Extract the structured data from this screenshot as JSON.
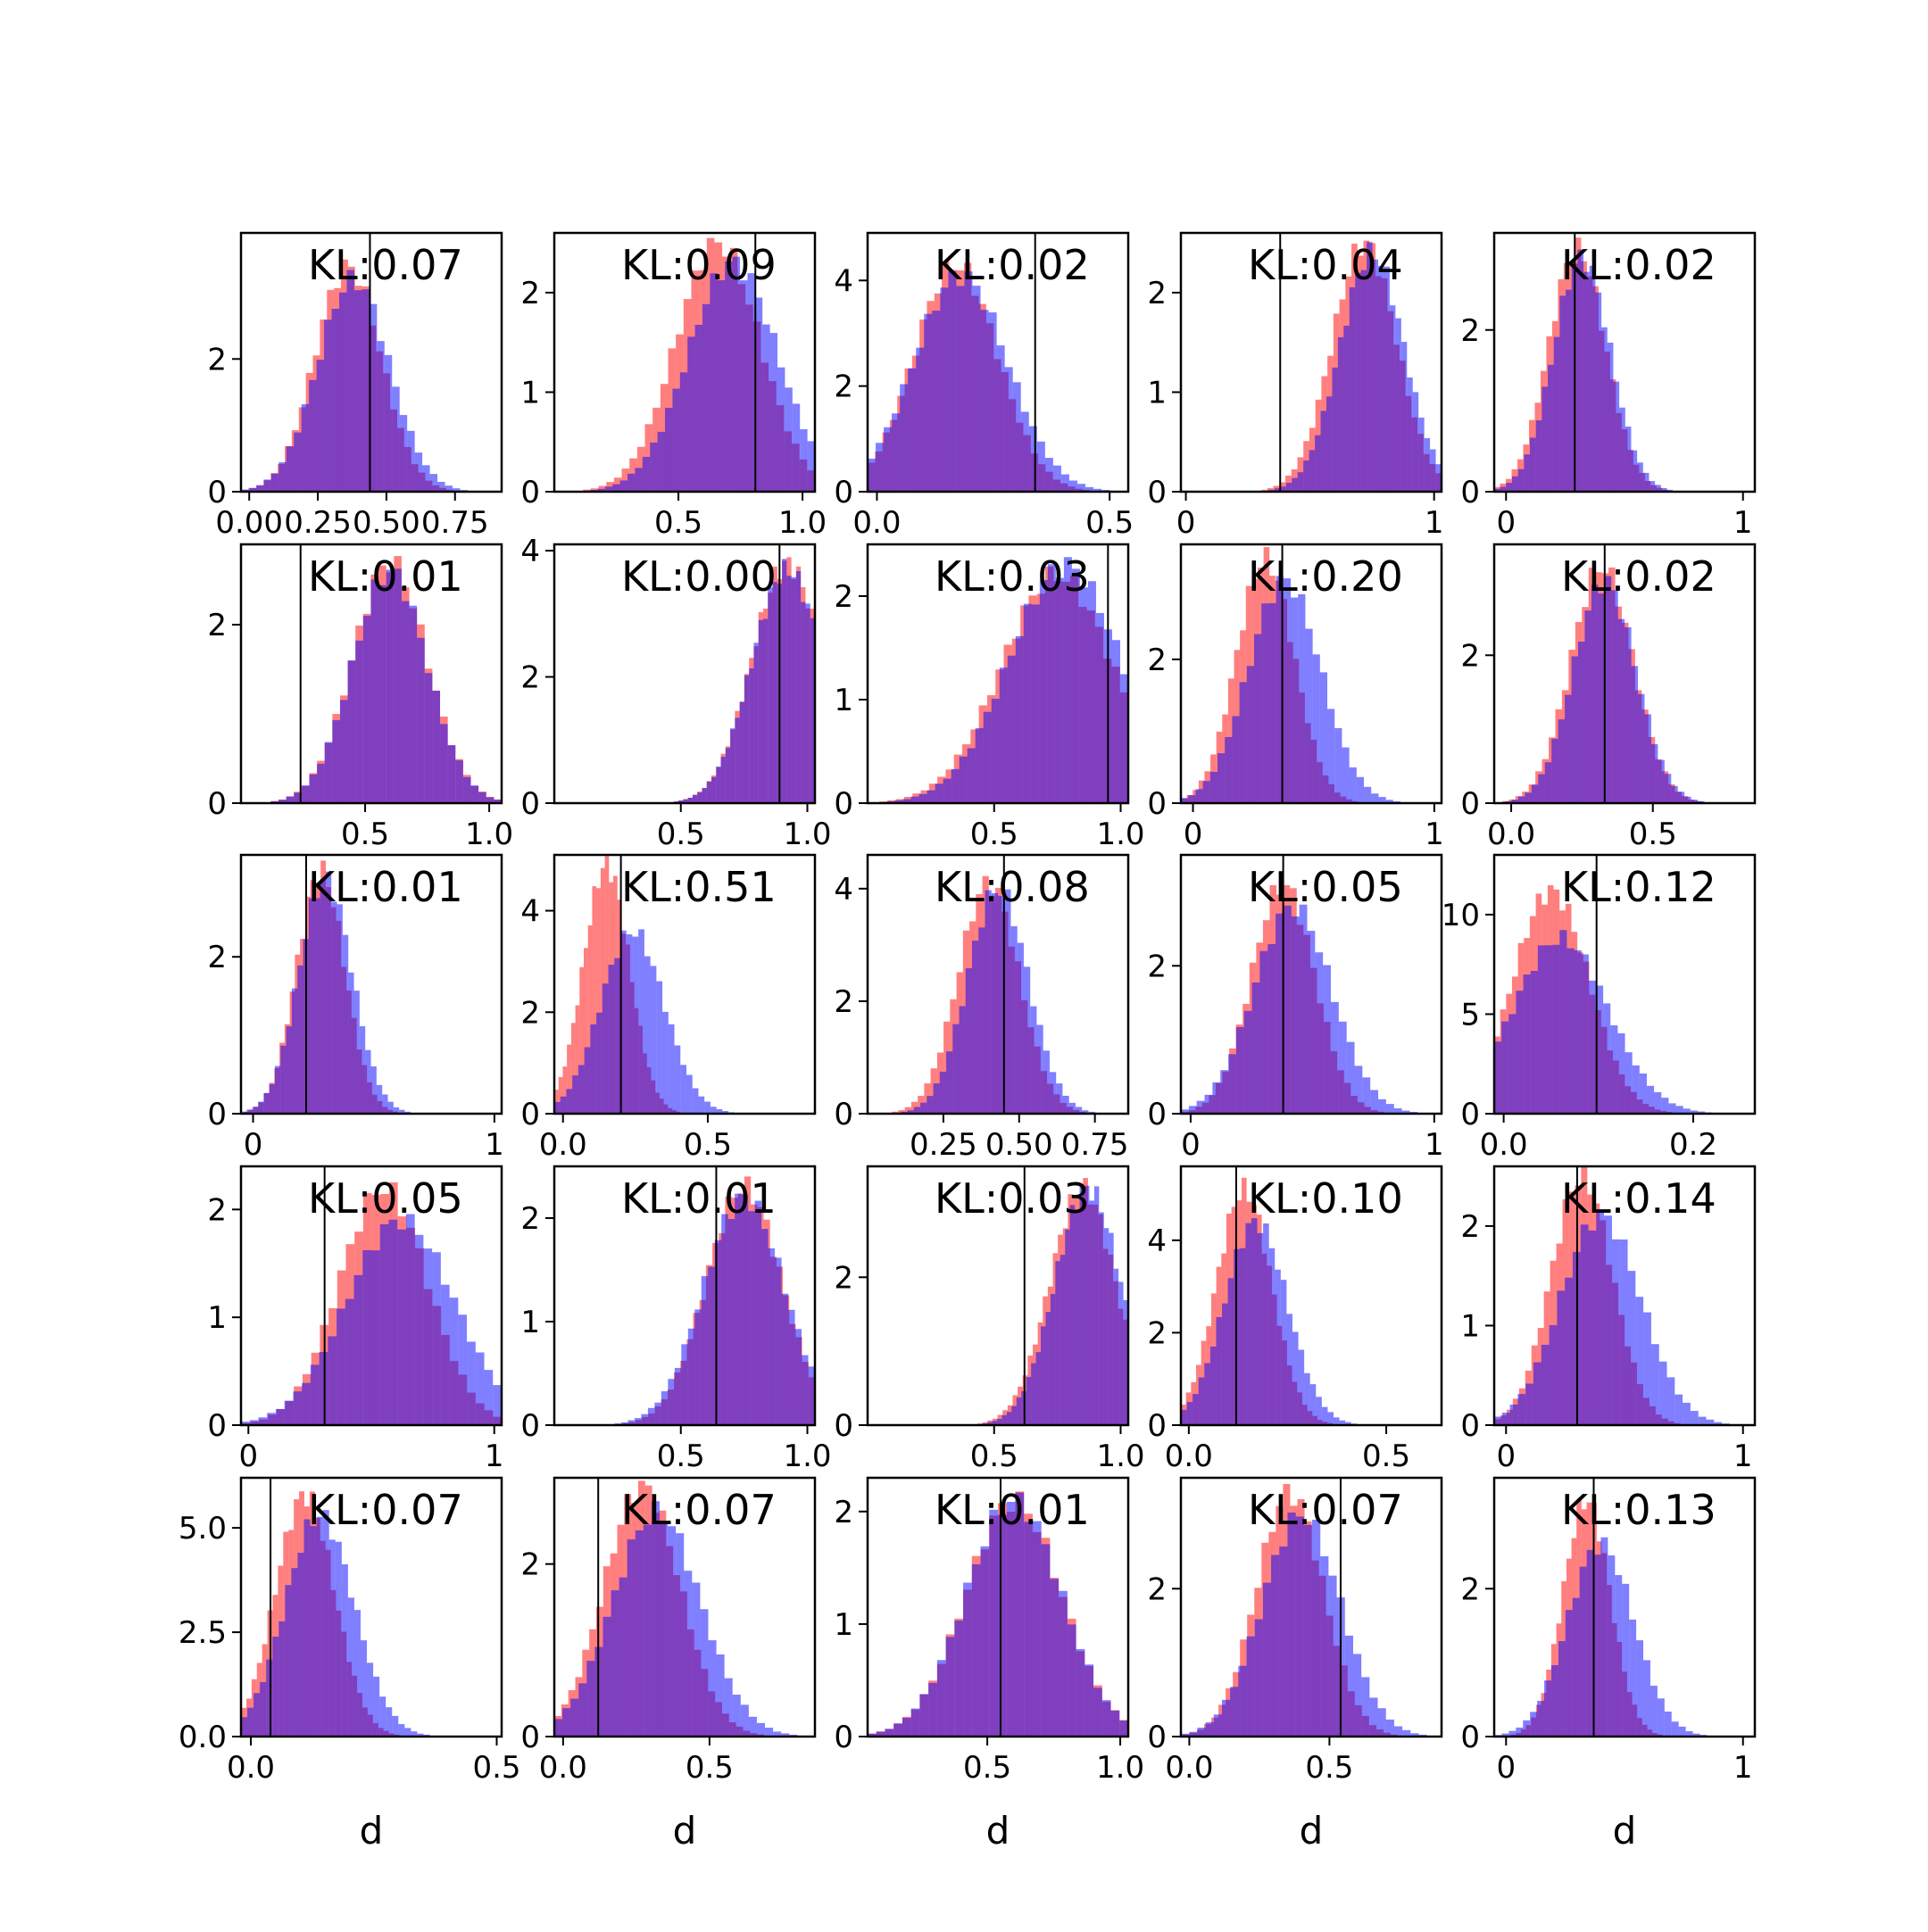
{
  "chart_data": {
    "type": "histogram-grid",
    "rows": 5,
    "cols": 5,
    "colors": {
      "red_series": "#ff0000",
      "blue_series": "#0000ff",
      "overlap": "#7f3fbf",
      "alpha": 0.5
    },
    "xlabel": "d",
    "panels": [
      {
        "kl": "KL:0.07",
        "xlim": [
          -0.03,
          0.92
        ],
        "ylim": [
          0,
          3.9
        ],
        "xticks": [
          0,
          0.25,
          0.5,
          0.75
        ],
        "xticklabels": [
          "0.00",
          "0.25",
          "0.50",
          "0.75"
        ],
        "yticks": [
          0,
          2
        ],
        "yticklabels": [
          "0",
          "2"
        ],
        "vline": 0.44,
        "red": {
          "mean": 0.36,
          "sd": 0.12,
          "peak": 3.4
        },
        "blue": {
          "mean": 0.38,
          "sd": 0.13,
          "peak": 3.2
        }
      },
      {
        "kl": "KL:0.09",
        "xlim": [
          0.0,
          1.05
        ],
        "ylim": [
          0,
          2.6
        ],
        "xticks": [
          0.5,
          1.0
        ],
        "xticklabels": [
          "0.5",
          "1.0"
        ],
        "yticks": [
          0,
          1,
          2
        ],
        "yticklabels": [
          "0",
          "1",
          "2"
        ],
        "vline": 0.81,
        "red": {
          "mean": 0.66,
          "sd": 0.17,
          "peak": 2.5
        },
        "blue": {
          "mean": 0.72,
          "sd": 0.18,
          "peak": 2.3
        }
      },
      {
        "kl": "KL:0.02",
        "xlim": [
          -0.02,
          0.54
        ],
        "ylim": [
          0,
          4.9
        ],
        "xticks": [
          0,
          0.5
        ],
        "xticklabels": [
          "0.0",
          "0.5"
        ],
        "yticks": [
          0,
          2,
          4
        ],
        "yticklabels": [
          "0",
          "2",
          "4"
        ],
        "vline": 0.34,
        "red": {
          "mean": 0.17,
          "sd": 0.09,
          "peak": 4.3
        },
        "blue": {
          "mean": 0.18,
          "sd": 0.1,
          "peak": 4.1
        }
      },
      {
        "kl": "KL:0.04",
        "xlim": [
          -0.02,
          1.03
        ],
        "ylim": [
          0,
          2.6
        ],
        "xticks": [
          0,
          1
        ],
        "xticklabels": [
          "0",
          "1"
        ],
        "yticks": [
          0,
          1,
          2
        ],
        "yticklabels": [
          "0",
          "1",
          "2"
        ],
        "vline": 0.38,
        "red": {
          "mean": 0.72,
          "sd": 0.13,
          "peak": 2.5
        },
        "blue": {
          "mean": 0.75,
          "sd": 0.13,
          "peak": 2.4
        }
      },
      {
        "kl": "KL:0.02",
        "xlim": [
          -0.05,
          1.05
        ],
        "ylim": [
          0,
          3.2
        ],
        "xticks": [
          0,
          1
        ],
        "xticklabels": [
          "0",
          "1"
        ],
        "yticks": [
          0,
          2
        ],
        "yticklabels": [
          "0",
          "2"
        ],
        "vline": 0.29,
        "red": {
          "mean": 0.3,
          "sd": 0.12,
          "peak": 3.0
        },
        "blue": {
          "mean": 0.32,
          "sd": 0.12,
          "peak": 2.9
        }
      },
      {
        "kl": "KL:0.01",
        "xlim": [
          0.0,
          1.05
        ],
        "ylim": [
          0,
          2.9
        ],
        "xticks": [
          0.5,
          1.0
        ],
        "xticklabels": [
          "0.5",
          "1.0"
        ],
        "yticks": [
          0,
          2
        ],
        "yticklabels": [
          "0",
          "2"
        ],
        "vline": 0.24,
        "red": {
          "mean": 0.6,
          "sd": 0.15,
          "peak": 2.7
        },
        "blue": {
          "mean": 0.6,
          "sd": 0.15,
          "peak": 2.6
        }
      },
      {
        "kl": "KL:0.00",
        "xlim": [
          0.0,
          1.03
        ],
        "ylim": [
          0,
          4.1
        ],
        "xticks": [
          0.5,
          1.0
        ],
        "xticklabels": [
          "0.5",
          "1.0"
        ],
        "yticks": [
          0,
          2,
          4
        ],
        "yticklabels": [
          "0",
          "2",
          "4"
        ],
        "vline": 0.89,
        "red": {
          "mean": 0.92,
          "sd": 0.14,
          "peak": 3.8
        },
        "blue": {
          "mean": 0.92,
          "sd": 0.14,
          "peak": 3.7
        }
      },
      {
        "kl": "KL:0.03",
        "xlim": [
          0.0,
          1.03
        ],
        "ylim": [
          0,
          2.5
        ],
        "xticks": [
          0.5,
          1.0
        ],
        "xticklabels": [
          "0.5",
          "1.0"
        ],
        "yticks": [
          0,
          1,
          2
        ],
        "yticklabels": [
          "0",
          "1",
          "2"
        ],
        "vline": 0.95,
        "red": {
          "mean": 0.75,
          "sd": 0.22,
          "peak": 2.2
        },
        "blue": {
          "mean": 0.78,
          "sd": 0.22,
          "peak": 2.3
        }
      },
      {
        "kl": "KL:0.20",
        "xlim": [
          -0.05,
          1.03
        ],
        "ylim": [
          0,
          3.6
        ],
        "xticks": [
          0,
          1
        ],
        "xticklabels": [
          "0",
          "1"
        ],
        "yticks": [
          0,
          2
        ],
        "yticklabels": [
          "0",
          "2"
        ],
        "vline": 0.37,
        "red": {
          "mean": 0.3,
          "sd": 0.12,
          "peak": 3.4
        },
        "blue": {
          "mean": 0.38,
          "sd": 0.15,
          "peak": 3.1
        }
      },
      {
        "kl": "KL:0.02",
        "xlim": [
          -0.06,
          0.86
        ],
        "ylim": [
          0,
          3.5
        ],
        "xticks": [
          0,
          0.5
        ],
        "xticklabels": [
          "0.0",
          "0.5"
        ],
        "yticks": [
          0,
          2
        ],
        "yticklabels": [
          "0",
          "2"
        ],
        "vline": 0.33,
        "red": {
          "mean": 0.32,
          "sd": 0.11,
          "peak": 3.2
        },
        "blue": {
          "mean": 0.33,
          "sd": 0.11,
          "peak": 3.0
        }
      },
      {
        "kl": "KL:0.01",
        "xlim": [
          -0.05,
          1.03
        ],
        "ylim": [
          0,
          3.3
        ],
        "xticks": [
          0,
          1
        ],
        "xticklabels": [
          "0",
          "1"
        ],
        "yticks": [
          0,
          2
        ],
        "yticklabels": [
          "0",
          "2"
        ],
        "vline": 0.22,
        "red": {
          "mean": 0.28,
          "sd": 0.1,
          "peak": 3.1
        },
        "blue": {
          "mean": 0.3,
          "sd": 0.11,
          "peak": 3.0
        }
      },
      {
        "kl": "KL:0.51",
        "xlim": [
          -0.03,
          0.87
        ],
        "ylim": [
          0,
          5.1
        ],
        "xticks": [
          0,
          0.5
        ],
        "xticklabels": [
          "0.0",
          "0.5"
        ],
        "yticks": [
          0,
          2,
          4
        ],
        "yticklabels": [
          "0",
          "2",
          "4"
        ],
        "vline": 0.2,
        "red": {
          "mean": 0.15,
          "sd": 0.08,
          "peak": 4.9
        },
        "blue": {
          "mean": 0.24,
          "sd": 0.11,
          "peak": 3.6
        }
      },
      {
        "kl": "KL:0.08",
        "xlim": [
          0.0,
          0.86
        ],
        "ylim": [
          0,
          4.6
        ],
        "xticks": [
          0.25,
          0.5,
          0.75
        ],
        "xticklabels": [
          "0.25",
          "0.50",
          "0.75"
        ],
        "yticks": [
          0,
          2,
          4
        ],
        "yticklabels": [
          "0",
          "2",
          "4"
        ],
        "vline": 0.45,
        "red": {
          "mean": 0.4,
          "sd": 0.1,
          "peak": 4.1
        },
        "blue": {
          "mean": 0.43,
          "sd": 0.1,
          "peak": 4.0
        }
      },
      {
        "kl": "KL:0.05",
        "xlim": [
          -0.04,
          1.03
        ],
        "ylim": [
          0,
          3.5
        ],
        "xticks": [
          0,
          1
        ],
        "xticklabels": [
          "0",
          "1"
        ],
        "yticks": [
          0,
          2
        ],
        "yticklabels": [
          "0",
          "2"
        ],
        "vline": 0.38,
        "red": {
          "mean": 0.38,
          "sd": 0.13,
          "peak": 3.1
        },
        "blue": {
          "mean": 0.42,
          "sd": 0.16,
          "peak": 2.8
        }
      },
      {
        "kl": "KL:0.12",
        "xlim": [
          -0.01,
          0.265
        ],
        "ylim": [
          0,
          13
        ],
        "xticks": [
          0,
          0.2
        ],
        "xticklabels": [
          "0.0",
          "0.2"
        ],
        "yticks": [
          0,
          5,
          10
        ],
        "yticklabels": [
          "0",
          "5",
          "10"
        ],
        "vline": 0.098,
        "red": {
          "mean": 0.05,
          "sd": 0.04,
          "peak": 11.2
        },
        "blue": {
          "mean": 0.06,
          "sd": 0.05,
          "peak": 8.8
        }
      },
      {
        "kl": "KL:0.05",
        "xlim": [
          -0.03,
          1.03
        ],
        "ylim": [
          0,
          2.4
        ],
        "xticks": [
          0,
          1
        ],
        "xticklabels": [
          "0",
          "1"
        ],
        "yticks": [
          0,
          1,
          2
        ],
        "yticklabels": [
          "0",
          "1",
          "2"
        ],
        "vline": 0.31,
        "red": {
          "mean": 0.55,
          "sd": 0.18,
          "peak": 2.2
        },
        "blue": {
          "mean": 0.62,
          "sd": 0.22,
          "peak": 1.9
        }
      },
      {
        "kl": "KL:0.01",
        "xlim": [
          0.0,
          1.03
        ],
        "ylim": [
          0,
          2.5
        ],
        "xticks": [
          0.5,
          1.0
        ],
        "xticklabels": [
          "0.5",
          "1.0"
        ],
        "yticks": [
          0,
          1,
          2
        ],
        "yticklabels": [
          "0",
          "1",
          "2"
        ],
        "vline": 0.64,
        "red": {
          "mean": 0.75,
          "sd": 0.15,
          "peak": 2.3
        },
        "blue": {
          "mean": 0.75,
          "sd": 0.16,
          "peak": 2.2
        }
      },
      {
        "kl": "KL:0.03",
        "xlim": [
          0.0,
          1.03
        ],
        "ylim": [
          0,
          3.5
        ],
        "xticks": [
          0.5,
          1.0
        ],
        "xticklabels": [
          "0.5",
          "1.0"
        ],
        "yticks": [
          0,
          2
        ],
        "yticklabels": [
          "0",
          "2"
        ],
        "vline": 0.62,
        "red": {
          "mean": 0.85,
          "sd": 0.13,
          "peak": 3.2
        },
        "blue": {
          "mean": 0.87,
          "sd": 0.13,
          "peak": 3.2
        }
      },
      {
        "kl": "KL:0.10",
        "xlim": [
          -0.02,
          0.64
        ],
        "ylim": [
          0,
          5.6
        ],
        "xticks": [
          0,
          0.5
        ],
        "xticklabels": [
          "0.0",
          "0.5"
        ],
        "yticks": [
          0,
          2,
          4
        ],
        "yticklabels": [
          "0",
          "2",
          "4"
        ],
        "vline": 0.12,
        "red": {
          "mean": 0.14,
          "sd": 0.07,
          "peak": 5.1
        },
        "blue": {
          "mean": 0.17,
          "sd": 0.08,
          "peak": 4.4
        }
      },
      {
        "kl": "KL:0.14",
        "xlim": [
          -0.05,
          1.05
        ],
        "ylim": [
          0,
          2.6
        ],
        "xticks": [
          0,
          1
        ],
        "xticklabels": [
          "0",
          "1"
        ],
        "yticks": [
          0,
          1,
          2
        ],
        "yticklabels": [
          "0",
          "1",
          "2"
        ],
        "vline": 0.3,
        "red": {
          "mean": 0.32,
          "sd": 0.13,
          "peak": 2.5
        },
        "blue": {
          "mean": 0.4,
          "sd": 0.17,
          "peak": 2.1
        }
      },
      {
        "kl": "KL:0.07",
        "xlim": [
          -0.02,
          0.51
        ],
        "ylim": [
          0,
          6.2
        ],
        "xticks": [
          0,
          0.5
        ],
        "xticklabels": [
          "0.0",
          "0.5"
        ],
        "yticks": [
          0,
          2.5,
          5
        ],
        "yticklabels": [
          "0.0",
          "2.5",
          "5.0"
        ],
        "vline": 0.04,
        "red": {
          "mean": 0.11,
          "sd": 0.06,
          "peak": 5.8
        },
        "blue": {
          "mean": 0.14,
          "sd": 0.07,
          "peak": 5.3
        }
      },
      {
        "kl": "KL:0.07",
        "xlim": [
          -0.03,
          0.86
        ],
        "ylim": [
          0,
          3.0
        ],
        "xticks": [
          0,
          0.5
        ],
        "xticklabels": [
          "0.0",
          "0.5"
        ],
        "yticks": [
          0,
          2
        ],
        "yticklabels": [
          "0",
          "2"
        ],
        "vline": 0.12,
        "red": {
          "mean": 0.27,
          "sd": 0.13,
          "peak": 2.9
        },
        "blue": {
          "mean": 0.32,
          "sd": 0.15,
          "peak": 2.6
        }
      },
      {
        "kl": "KL:0.01",
        "xlim": [
          0.05,
          1.03
        ],
        "ylim": [
          0,
          2.3
        ],
        "xticks": [
          0.5,
          1.0
        ],
        "xticklabels": [
          "0.5",
          "1.0"
        ],
        "yticks": [
          0,
          1,
          2
        ],
        "yticklabels": [
          "0",
          "1",
          "2"
        ],
        "vline": 0.55,
        "red": {
          "mean": 0.6,
          "sd": 0.18,
          "peak": 2.1
        },
        "blue": {
          "mean": 0.6,
          "sd": 0.18,
          "peak": 2.1
        }
      },
      {
        "kl": "KL:0.07",
        "xlim": [
          -0.03,
          0.9
        ],
        "ylim": [
          0,
          3.5
        ],
        "xticks": [
          0,
          0.5
        ],
        "xticklabels": [
          "0.0",
          "0.5"
        ],
        "yticks": [
          0,
          2
        ],
        "yticklabels": [
          "0",
          "2"
        ],
        "vline": 0.54,
        "red": {
          "mean": 0.36,
          "sd": 0.12,
          "peak": 3.3
        },
        "blue": {
          "mean": 0.4,
          "sd": 0.14,
          "peak": 3.0
        }
      },
      {
        "kl": "KL:0.13",
        "xlim": [
          -0.05,
          1.05
        ],
        "ylim": [
          0,
          3.5
        ],
        "xticks": [
          0,
          1
        ],
        "xticklabels": [
          "0",
          "1"
        ],
        "yticks": [
          0,
          2
        ],
        "yticklabels": [
          "0",
          "2"
        ],
        "vline": 0.37,
        "red": {
          "mean": 0.34,
          "sd": 0.1,
          "peak": 3.2
        },
        "blue": {
          "mean": 0.4,
          "sd": 0.14,
          "peak": 2.6
        }
      }
    ]
  }
}
